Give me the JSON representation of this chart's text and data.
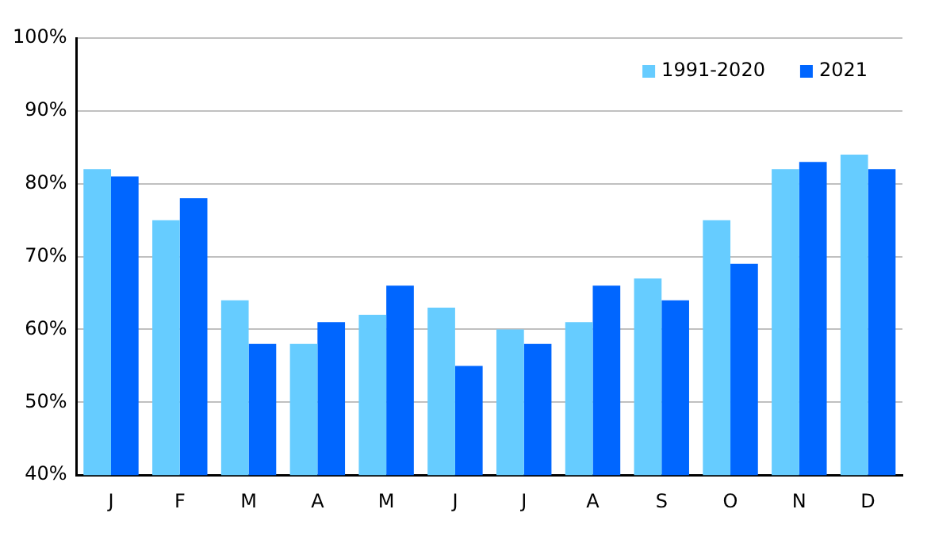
{
  "chart_data": {
    "type": "bar",
    "categories": [
      "J",
      "F",
      "M",
      "A",
      "M",
      "J",
      "J",
      "A",
      "S",
      "O",
      "N",
      "D"
    ],
    "series": [
      {
        "name": "1991-2020",
        "color": "#66ccff",
        "values": [
          82,
          75,
          64,
          58,
          62,
          63,
          60,
          61,
          67,
          75,
          82,
          84
        ]
      },
      {
        "name": "2021",
        "color": "#0066ff",
        "values": [
          81,
          78,
          58,
          61,
          66,
          55,
          58,
          66,
          64,
          69,
          83,
          82
        ]
      }
    ],
    "ylim": [
      40,
      100
    ],
    "yticks": [
      {
        "value": 40,
        "label": "40%"
      },
      {
        "value": 50,
        "label": "50%"
      },
      {
        "value": 60,
        "label": "60%"
      },
      {
        "value": 70,
        "label": "70%"
      },
      {
        "value": 80,
        "label": "80%"
      },
      {
        "value": 90,
        "label": "90%"
      },
      {
        "value": 100,
        "label": "100%"
      }
    ],
    "grid": "y",
    "legend": "top right"
  }
}
